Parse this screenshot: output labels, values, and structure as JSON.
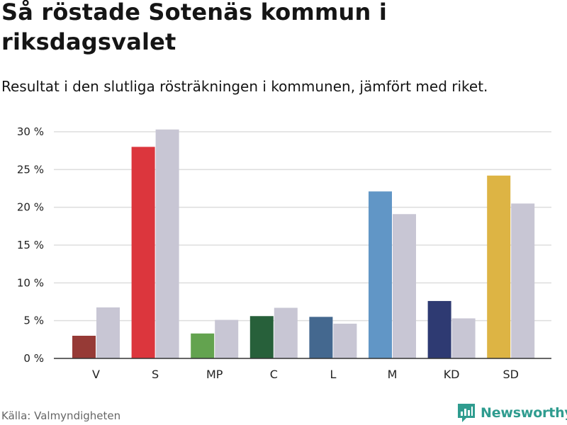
{
  "title": "Så röstade Sotenäs kommun i riksdagsvalet",
  "subtitle": "Resultat i den slutliga rösträkningen i kommunen, jämfört med riket.",
  "source": "Källa: Valmyndigheten",
  "brand": {
    "name": "Newsworthy",
    "icon": "newsworthy-logo-icon"
  },
  "colors": {
    "riket": "#c8c6d4",
    "grid": "#dddddd",
    "axis": "#333333",
    "brand": "#2f9c8f"
  },
  "chart_data": {
    "type": "bar",
    "categories": [
      "V",
      "S",
      "MP",
      "C",
      "L",
      "M",
      "KD",
      "SD"
    ],
    "series": [
      {
        "name": "Sotenäs",
        "values": [
          3.0,
          28.0,
          3.3,
          5.6,
          5.5,
          22.1,
          7.6,
          24.2
        ],
        "colors": [
          "#963a36",
          "#dc363d",
          "#63a34f",
          "#27603a",
          "#44688f",
          "#6196c6",
          "#2e3a72",
          "#ddb444"
        ]
      },
      {
        "name": "Riket",
        "values": [
          6.75,
          30.3,
          5.1,
          6.7,
          4.6,
          19.1,
          5.3,
          20.5
        ]
      }
    ],
    "yticks": [
      "0 %",
      "5 %",
      "10 %",
      "15 %",
      "20 %",
      "25 %",
      "30 %"
    ],
    "ytick_values": [
      0,
      5,
      10,
      15,
      20,
      25,
      30
    ],
    "ylim": [
      0,
      30
    ],
    "xlabel": "",
    "ylabel": "",
    "grid": true
  }
}
